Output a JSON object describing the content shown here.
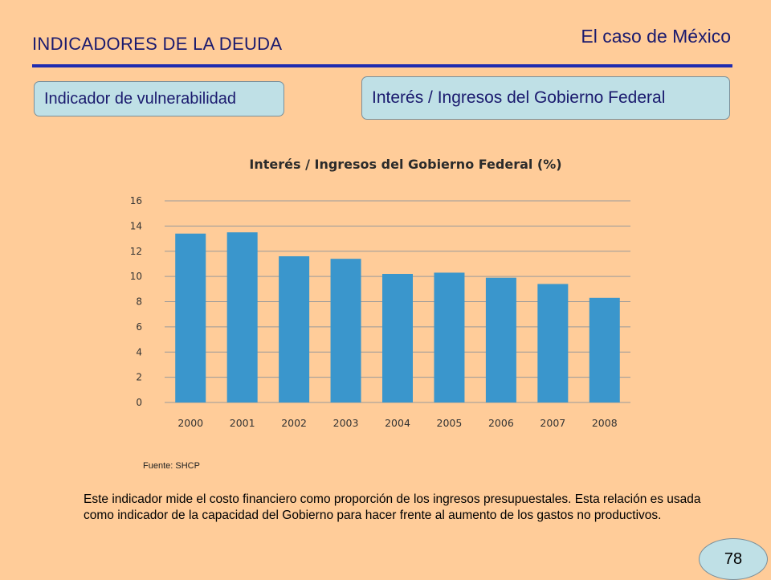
{
  "header": {
    "title": "INDICADORES DE LA DEUDA",
    "case": "El caso de México"
  },
  "tags": {
    "left": "Indicador de vulnerabilidad",
    "right": "Interés / Ingresos del Gobierno Federal"
  },
  "colors": {
    "background": "#FFCC99",
    "bar": "#3A96CC",
    "pill": "#BFE0E6",
    "rule": "#1F2BB0"
  },
  "chart_data": {
    "type": "bar",
    "title": "Interés / Ingresos del Gobierno Federal (%)",
    "categories": [
      "2000",
      "2001",
      "2002",
      "2003",
      "2004",
      "2005",
      "2006",
      "2007",
      "2008"
    ],
    "values": [
      13.4,
      13.5,
      11.6,
      11.4,
      10.2,
      10.3,
      9.9,
      9.4,
      8.3
    ],
    "ylim": [
      0,
      16
    ],
    "yticks": [
      0,
      2,
      4,
      6,
      8,
      10,
      12,
      14,
      16
    ],
    "grid": true,
    "legend": false
  },
  "source": "Fuente: SHCP",
  "description": "Este indicador mide el costo financiero como proporción de los ingresos presupuestales. Esta relación es usada como indicador de la capacidad del Gobierno para hacer frente al aumento de los gastos no productivos.",
  "page_number": "78"
}
